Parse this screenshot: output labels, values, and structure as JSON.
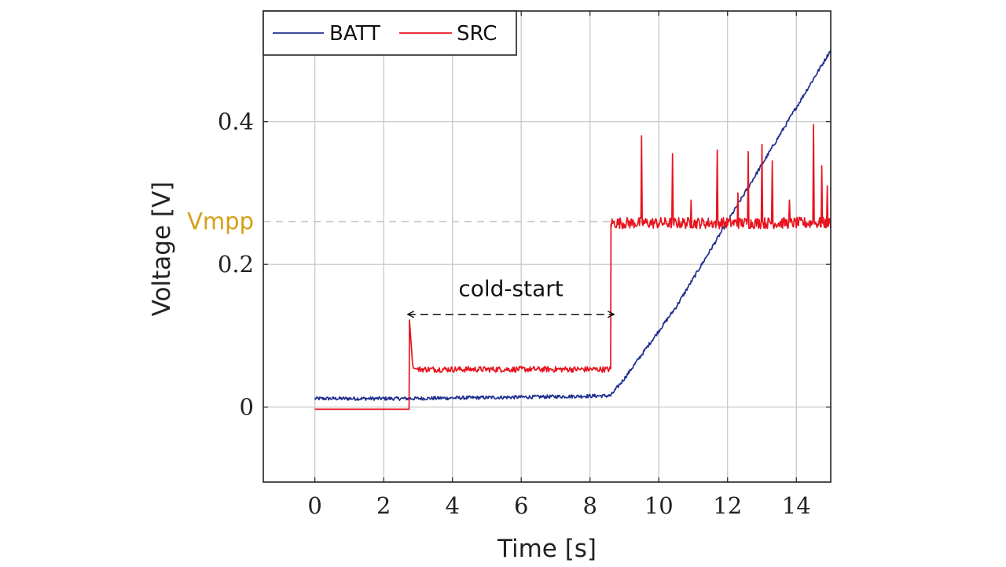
{
  "chart_data": {
    "type": "line",
    "title": "",
    "xlabel": "Time [s]",
    "ylabel": "Voltage [V]",
    "xlim": [
      -1.5,
      15
    ],
    "ylim": [
      -0.105,
      0.555
    ],
    "xticks": [
      0,
      2,
      4,
      6,
      8,
      10,
      12,
      14
    ],
    "xtick_labels": [
      "0",
      "2",
      "4",
      "6",
      "8",
      "10",
      "12",
      "14"
    ],
    "yticks": [
      0,
      0.2,
      0.4
    ],
    "ytick_labels": [
      "0",
      "0.2",
      "0.4"
    ],
    "grid": true,
    "legend_position": "top-left",
    "series": [
      {
        "name": "BATT",
        "color": "#1f2f8f",
        "x": [
          0,
          2.7,
          6,
          8.6,
          9.0,
          10.5,
          12.0,
          13.5,
          15.0
        ],
        "y": [
          0.012,
          0.012,
          0.014,
          0.016,
          0.04,
          0.14,
          0.26,
          0.38,
          0.5
        ],
        "noise": 0.0025
      },
      {
        "name": "SRC",
        "color": "#e8141f",
        "x": [
          0,
          2.74,
          2.75,
          2.85,
          3.0,
          8.6,
          8.61,
          15.0
        ],
        "y": [
          -0.003,
          -0.003,
          0.122,
          0.055,
          0.053,
          0.053,
          0.258,
          0.258
        ],
        "noise_segments": [
          {
            "from": 3.0,
            "to": 8.6,
            "amp": 0.004
          },
          {
            "from": 8.61,
            "to": 15.0,
            "amp": 0.008
          }
        ],
        "spikes": [
          {
            "x": 9.5,
            "y": 0.38
          },
          {
            "x": 10.4,
            "y": 0.355
          },
          {
            "x": 11.7,
            "y": 0.36
          },
          {
            "x": 12.6,
            "y": 0.358
          },
          {
            "x": 13.0,
            "y": 0.368
          },
          {
            "x": 13.3,
            "y": 0.345
          },
          {
            "x": 14.5,
            "y": 0.396
          },
          {
            "x": 14.75,
            "y": 0.338
          },
          {
            "x": 10.95,
            "y": 0.29
          },
          {
            "x": 12.3,
            "y": 0.3
          },
          {
            "x": 13.8,
            "y": 0.29
          },
          {
            "x": 14.9,
            "y": 0.31
          }
        ]
      }
    ],
    "reference_lines": [
      {
        "y": 0.26,
        "label": "Vmpp",
        "color": "#d4a017",
        "style": "dashed",
        "line_color": "#c8c8c8"
      }
    ],
    "annotations": [
      {
        "text": "cold-start",
        "from_x": 2.7,
        "to_x": 8.7,
        "y": 0.13,
        "style": "dashed-double-arrow"
      }
    ]
  }
}
